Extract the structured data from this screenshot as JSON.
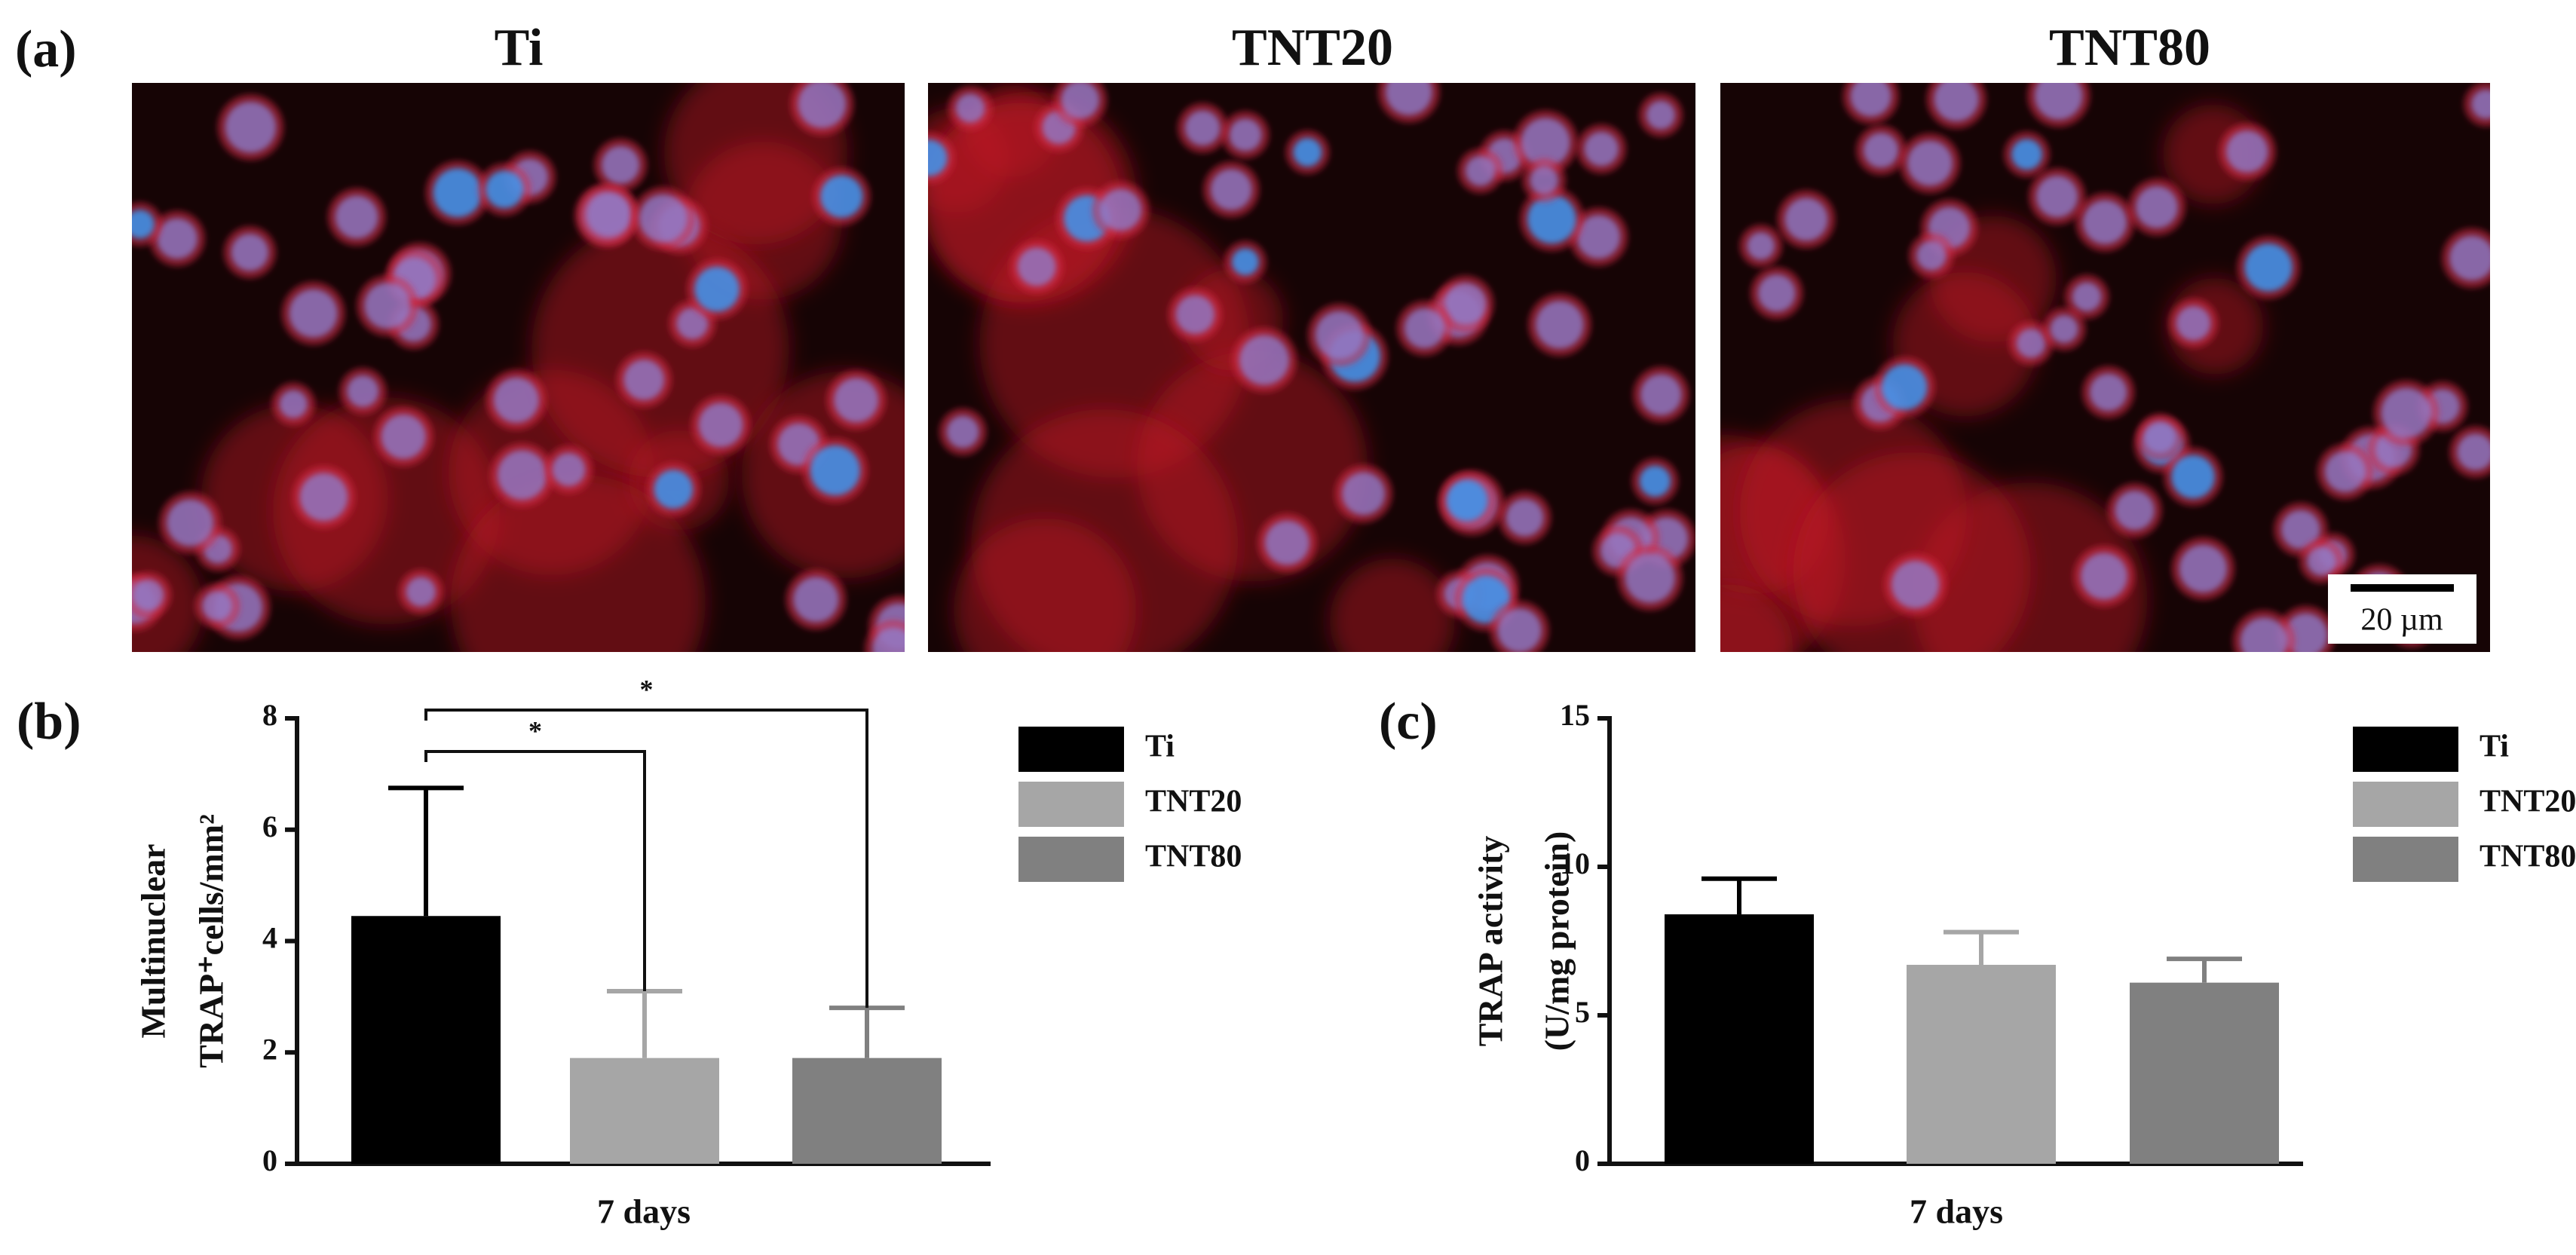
{
  "figure": {
    "panel_labels": [
      "(a)",
      "(b)",
      "(c)"
    ],
    "image_titles": [
      "Ti",
      "TNT20",
      "TNT80"
    ],
    "scale_bar": "20 µm"
  },
  "chart_data": [
    {
      "type": "bar",
      "categories": [
        "7 days"
      ],
      "y_label": [
        "Multinuclear",
        "TRAP⁺cells/mm²"
      ],
      "series": [
        {
          "name": "Ti",
          "color": "#000000",
          "values": [
            4.45
          ],
          "errors": [
            2.3
          ]
        },
        {
          "name": "TNT20",
          "color": "#a6a6a6",
          "values": [
            1.9
          ],
          "errors": [
            1.2
          ]
        },
        {
          "name": "TNT80",
          "color": "#808080",
          "values": [
            1.9
          ],
          "errors": [
            0.9
          ]
        }
      ],
      "ylim": [
        0,
        8
      ],
      "yticks": [
        0,
        2,
        4,
        6,
        8
      ],
      "legend": "right",
      "significance": [
        {
          "pair": [
            0,
            1
          ],
          "label": "*"
        },
        {
          "pair": [
            0,
            2
          ],
          "label": "*"
        }
      ]
    },
    {
      "type": "bar",
      "categories": [
        "7 days"
      ],
      "y_label": [
        "TRAP activity",
        "(U/mg protein)"
      ],
      "series": [
        {
          "name": "Ti",
          "color": "#000000",
          "values": [
            8.4
          ],
          "errors": [
            1.2
          ]
        },
        {
          "name": "TNT20",
          "color": "#a6a6a6",
          "values": [
            6.7
          ],
          "errors": [
            1.1
          ]
        },
        {
          "name": "TNT80",
          "color": "#808080",
          "values": [
            6.1
          ],
          "errors": [
            0.8
          ]
        }
      ],
      "ylim": [
        0,
        15
      ],
      "yticks": [
        0,
        5,
        10,
        15
      ],
      "legend": "right"
    }
  ]
}
